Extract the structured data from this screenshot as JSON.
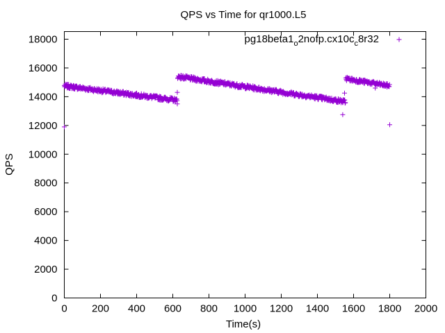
{
  "chart_data": {
    "type": "scatter",
    "title": "QPS vs Time for qr1000.L5",
    "xlabel": "Time(s)",
    "ylabel": "QPS",
    "xlim": [
      0,
      2000
    ],
    "ylim": [
      0,
      19000
    ],
    "xticks": [
      0,
      200,
      400,
      600,
      800,
      1000,
      1200,
      1400,
      1600,
      1800,
      2000
    ],
    "yticks": [
      0,
      2000,
      4000,
      6000,
      8000,
      10000,
      12000,
      14000,
      16000,
      18000
    ],
    "xtick_labels": [
      "0",
      "200",
      "400",
      "600",
      "800",
      "1000",
      "1200",
      "1400",
      "1600",
      "1800",
      "2000"
    ],
    "ytick_labels": [
      "0",
      "2000",
      "4000",
      "6000",
      "8000",
      "10000",
      "12000",
      "14000",
      "16000",
      "18000"
    ],
    "grid": false,
    "legend_position": "top-right",
    "series": [
      {
        "name_parts": {
          "p1": "pg18beta1",
          "s1": "o",
          "p2": "2nofp.cx10c",
          "s2": "c",
          "p3": "8r32"
        },
        "color": "#9400d3",
        "marker": "plus",
        "segments": [
          {
            "x_start": 0,
            "x_end": 625,
            "step": 2,
            "y_start": 14750,
            "y_end": 13750,
            "noise": 140
          },
          {
            "x_start": 627,
            "x_end": 1555,
            "step": 2,
            "y_start": 15400,
            "y_end": 13650,
            "noise": 140
          },
          {
            "x_start": 1557,
            "x_end": 1800,
            "step": 2,
            "y_start": 15250,
            "y_end": 14750,
            "noise": 130
          }
        ],
        "outliers": [
          {
            "x": 0,
            "y": 11900
          },
          {
            "x": 625,
            "y": 14300
          },
          {
            "x": 625,
            "y": 13500
          },
          {
            "x": 1540,
            "y": 12750
          },
          {
            "x": 1550,
            "y": 14250
          },
          {
            "x": 1565,
            "y": 15350
          },
          {
            "x": 1720,
            "y": 14600
          },
          {
            "x": 1800,
            "y": 12050
          }
        ]
      }
    ]
  }
}
